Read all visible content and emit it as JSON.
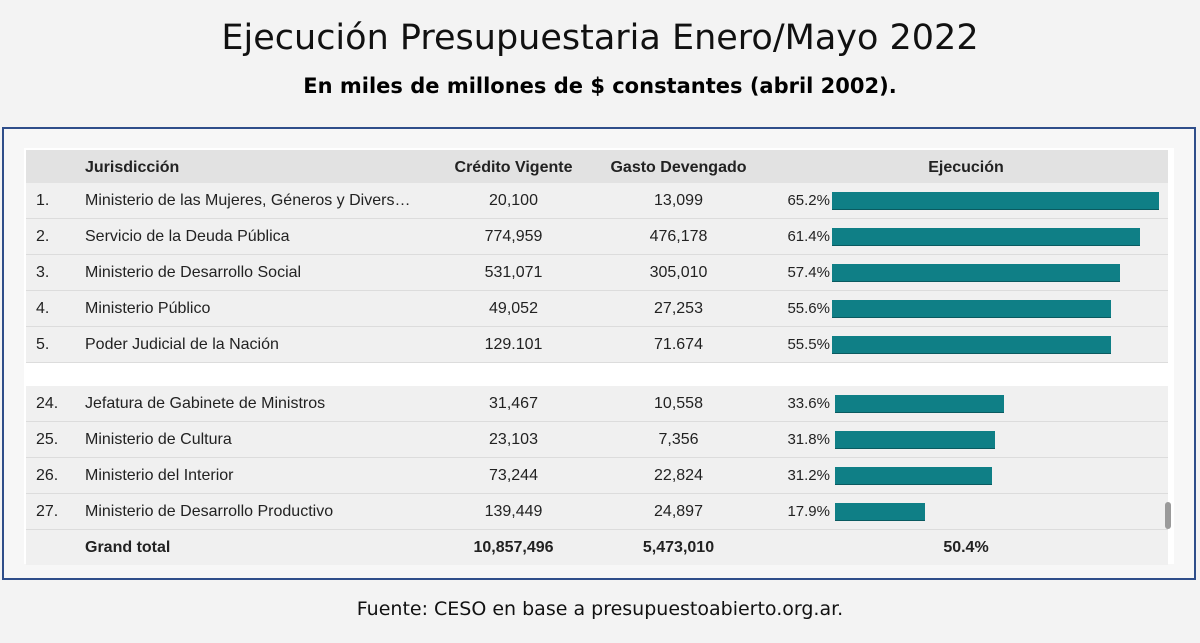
{
  "title": "Ejecución Presupuestaria Enero/Mayo 2022",
  "subtitle": "En miles de millones de $ constantes (abril 2002).",
  "table": {
    "headers": {
      "rank": "",
      "jurisdiccion": "Jurisdicción",
      "credito": "Crédito Vigente",
      "gasto": "Gasto Devengado",
      "ejecucion": "Ejecución"
    },
    "top_rows": [
      {
        "rank": "1.",
        "name": "Ministerio de las Mujeres, Géneros y Divers…",
        "credito": "20,100",
        "gasto": "13,099",
        "pct_label": "65.2%",
        "pct": 65.2
      },
      {
        "rank": "2.",
        "name": "Servicio de la Deuda Pública",
        "credito": "774,959",
        "gasto": "476,178",
        "pct_label": "61.4%",
        "pct": 61.4
      },
      {
        "rank": "3.",
        "name": "Ministerio de Desarrollo Social",
        "credito": "531,071",
        "gasto": "305,010",
        "pct_label": "57.4%",
        "pct": 57.4
      },
      {
        "rank": "4.",
        "name": "Ministerio Público",
        "credito": "49,052",
        "gasto": "27,253",
        "pct_label": "55.6%",
        "pct": 55.6
      },
      {
        "rank": "5.",
        "name": "Poder Judicial de la Nación",
        "credito": "129.101",
        "gasto": "71.674",
        "pct_label": "55.5%",
        "pct": 55.5
      }
    ],
    "bottom_rows": [
      {
        "rank": "24.",
        "name": "Jefatura de Gabinete de Ministros",
        "credito": "31,467",
        "gasto": "10,558",
        "pct_label": "33.6%",
        "pct": 33.6
      },
      {
        "rank": "25.",
        "name": "Ministerio de Cultura",
        "credito": "23,103",
        "gasto": "7,356",
        "pct_label": "31.8%",
        "pct": 31.8
      },
      {
        "rank": "26.",
        "name": "Ministerio del Interior",
        "credito": "73,244",
        "gasto": "22,824",
        "pct_label": "31.2%",
        "pct": 31.2
      },
      {
        "rank": "27.",
        "name": "Ministerio de Desarrollo Productivo",
        "credito": "139,449",
        "gasto": "24,897",
        "pct_label": "17.9%",
        "pct": 17.9
      }
    ],
    "total": {
      "label": "Grand total",
      "credito": "10,857,496",
      "gasto": "5,473,010",
      "pct_label": "50.4%"
    },
    "bar_color": "#0f7f86"
  },
  "footer": "Fuente: CESO en base a presupuestoabierto.org.ar."
}
